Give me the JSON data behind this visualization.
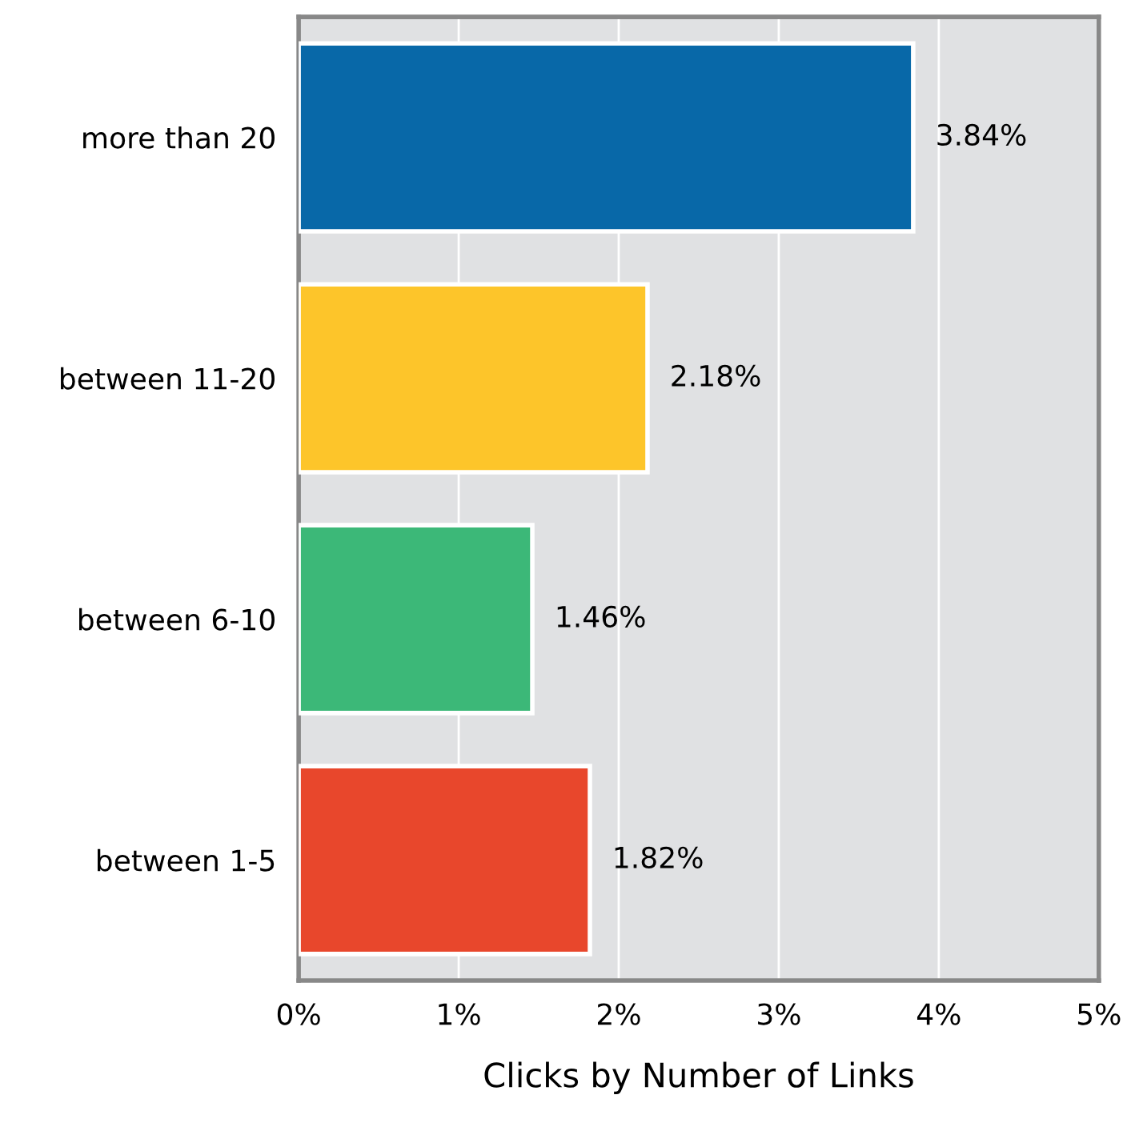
{
  "chart_data": {
    "type": "bar",
    "orientation": "horizontal",
    "xlabel": "Clicks by Number of Links",
    "categories": [
      "more than 20",
      "between 11-20",
      "between 6-10",
      "between 1-5"
    ],
    "values": [
      3.84,
      2.18,
      1.46,
      1.82
    ],
    "colors": [
      "#0868a8",
      "#fdc52a",
      "#3cb878",
      "#e8472c"
    ],
    "value_labels": [
      "3.84%",
      "2.18%",
      "1.46%",
      "1.82%"
    ],
    "xlim": [
      0,
      5
    ],
    "xticks": [
      {
        "value": 0,
        "label": "0%"
      },
      {
        "value": 1,
        "label": "1%"
      },
      {
        "value": 2,
        "label": "2%"
      },
      {
        "value": 3,
        "label": "3%"
      },
      {
        "value": 4,
        "label": "4%"
      },
      {
        "value": 5,
        "label": "5%"
      }
    ],
    "grid": "x",
    "legend": false
  }
}
